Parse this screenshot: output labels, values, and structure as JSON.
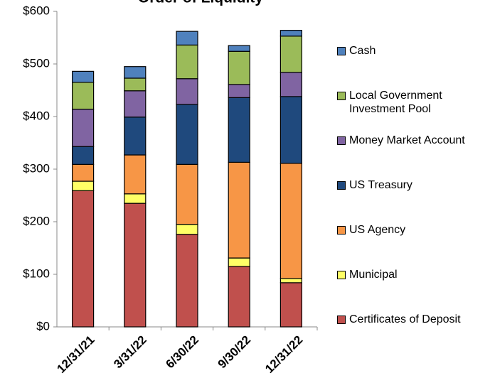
{
  "chart_data": {
    "type": "stacked-bar",
    "title": "Order of Liquidity",
    "categories": [
      "12/31/21",
      "3/31/22",
      "6/30/22",
      "9/30/22",
      "12/31/22"
    ],
    "series": [
      {
        "name": "Certificates of Deposit",
        "color": "#c0504d",
        "values": [
          259,
          235,
          176,
          115,
          84
        ]
      },
      {
        "name": "Municipal",
        "color": "#ffff66",
        "values": [
          18,
          18,
          19,
          16,
          8
        ]
      },
      {
        "name": "US Agency",
        "color": "#f79646",
        "values": [
          32,
          74,
          114,
          182,
          219
        ]
      },
      {
        "name": "US Treasury",
        "color": "#1f497d",
        "values": [
          34,
          72,
          114,
          123,
          127
        ]
      },
      {
        "name": "Money Market Account",
        "color": "#8064a2",
        "values": [
          71,
          50,
          49,
          25,
          46
        ]
      },
      {
        "name": "Local Government Investment Pool",
        "color": "#9bbb59",
        "values": [
          51,
          24,
          64,
          63,
          69
        ]
      },
      {
        "name": "Cash",
        "color": "#4f81bd",
        "values": [
          21,
          22,
          26,
          11,
          11
        ]
      }
    ],
    "ylim": [
      0,
      600
    ],
    "yticks": [
      {
        "value": 0,
        "label": "$0"
      },
      {
        "value": 100,
        "label": "$100"
      },
      {
        "value": 200,
        "label": "$200"
      },
      {
        "value": 300,
        "label": "$300"
      },
      {
        "value": 400,
        "label": "$400"
      },
      {
        "value": 500,
        "label": "$500"
      },
      {
        "value": 600,
        "label": "$600"
      }
    ],
    "grid": false,
    "legend": "right"
  }
}
